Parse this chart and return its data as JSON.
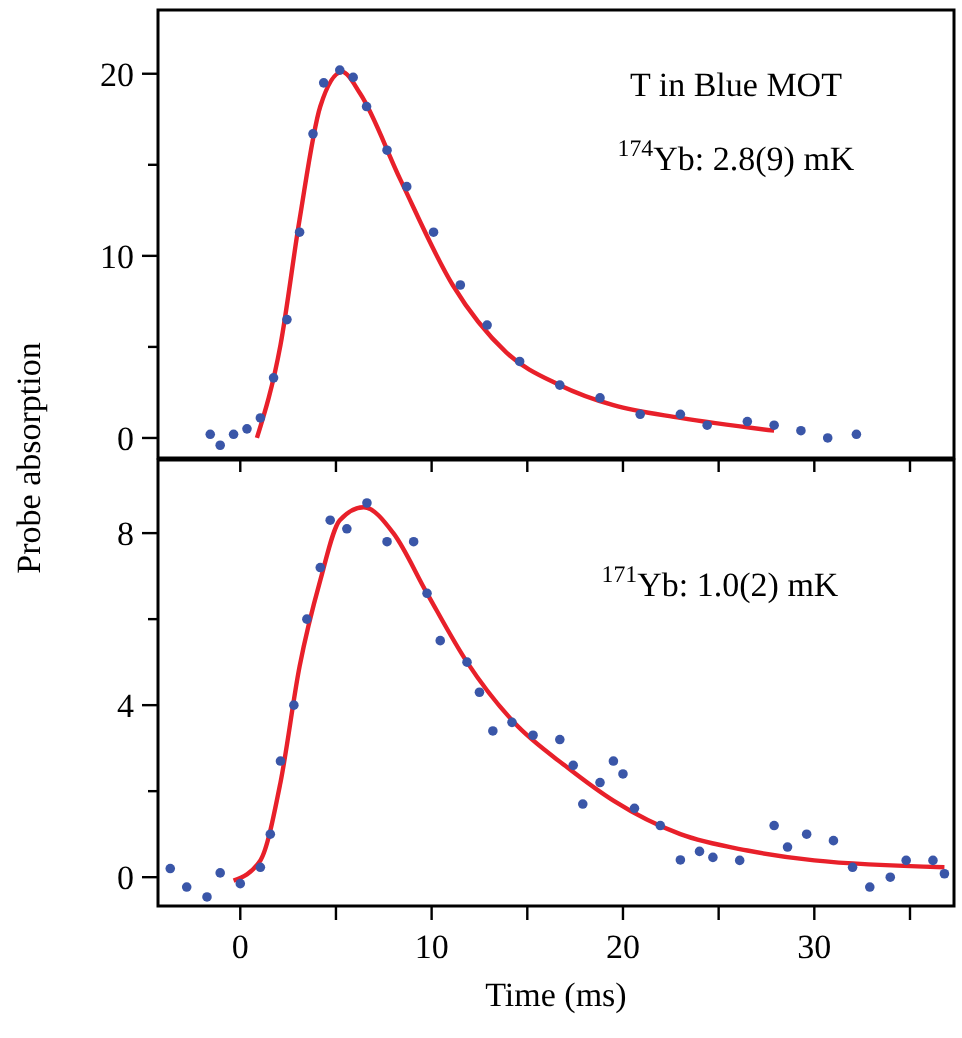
{
  "chart_data": [
    {
      "type": "scatter",
      "ylabel": "Probe absorption",
      "annotations": [
        "T in Blue MOT",
        "$^{174}$Yb: 2.8(9) mK"
      ],
      "xlim": [
        -4.3,
        37.3
      ],
      "ylim": [
        -1.1,
        23.5
      ],
      "xticks": [
        {
          "value": 0,
          "label": null
        },
        {
          "value": 5,
          "label": null
        },
        {
          "value": 10,
          "label": null
        },
        {
          "value": 15,
          "label": null
        },
        {
          "value": 20,
          "label": null
        },
        {
          "value": 25,
          "label": null
        },
        {
          "value": 30,
          "label": null
        },
        {
          "value": 35,
          "label": null
        }
      ],
      "yticks": [
        0,
        {
          "value": 5,
          "label": null
        },
        10,
        {
          "value": 15,
          "label": null
        },
        20
      ],
      "tick_labels": "y",
      "grid": false,
      "legend": false,
      "series": [
        {
          "marker": "circle",
          "color": "#3a56a8",
          "x": [
            -1.57,
            -1.05,
            -0.35,
            0.35,
            1.05,
            1.74,
            2.44,
            3.1,
            3.8,
            4.36,
            5.2,
            5.9,
            6.6,
            7.67,
            8.7,
            10.1,
            11.5,
            12.9,
            14.6,
            16.7,
            18.8,
            20.9,
            23.0,
            24.4,
            26.5,
            27.9,
            29.3,
            30.7,
            32.2
          ],
          "values": [
            0.2,
            -0.4,
            0.2,
            0.5,
            1.1,
            3.3,
            6.5,
            11.3,
            16.7,
            19.5,
            20.2,
            19.8,
            18.2,
            15.8,
            13.8,
            11.3,
            8.4,
            6.2,
            4.2,
            2.9,
            2.2,
            1.3,
            1.3,
            0.7,
            0.9,
            0.7,
            0.4,
            0,
            0.2
          ]
        },
        {
          "type": "line",
          "color": "#e8202a",
          "line_style": "solid",
          "x": [
            0.87,
            2.1,
            3.1,
            4.18,
            5.33,
            6.27,
            8.36,
            11.1,
            13.9,
            16.7,
            19.5,
            23.0,
            27.9
          ],
          "values": [
            0,
            5.1,
            12,
            18.2,
            20.1,
            18.9,
            14.2,
            8.4,
            4.7,
            2.9,
            1.8,
            1.1,
            0.4
          ]
        }
      ]
    },
    {
      "type": "scatter",
      "xlabel": "Time (ms)",
      "annotations": [
        "$^{171}$Yb: 1.0(2) mK"
      ],
      "xlim": [
        -4.3,
        37.3
      ],
      "ylim": [
        -0.67,
        9.7
      ],
      "xticks": [
        0,
        {
          "value": 5,
          "label": null
        },
        10,
        {
          "value": 15,
          "label": null
        },
        20,
        {
          "value": 25,
          "label": null
        },
        30,
        {
          "value": 35,
          "label": null
        }
      ],
      "yticks": [
        0,
        {
          "value": 2,
          "label": null
        },
        4,
        {
          "value": 6,
          "label": null
        },
        8
      ],
      "grid": false,
      "legend": false,
      "series": [
        {
          "marker": "circle",
          "color": "#3a56a8",
          "x": [
            -3.66,
            -2.8,
            -1.74,
            -1.05,
            0,
            1.05,
            1.57,
            2.1,
            2.8,
            3.48,
            4.18,
            4.7,
            5.57,
            6.62,
            7.67,
            9.06,
            9.76,
            10.45,
            11.85,
            12.5,
            13.2,
            14.2,
            15.3,
            16.7,
            17.4,
            17.9,
            18.8,
            19.5,
            20.0,
            20.6,
            21.95,
            23.0,
            24.0,
            24.7,
            26.1,
            27.9,
            28.6,
            29.6,
            31.0,
            32.0,
            32.9,
            33.97,
            34.8,
            36.2,
            36.8
          ],
          "values": [
            0.2,
            -0.23,
            -0.46,
            0.1,
            -0.15,
            0.23,
            1.0,
            2.7,
            4.0,
            6.0,
            7.2,
            8.3,
            8.1,
            8.7,
            7.8,
            7.8,
            6.6,
            5.5,
            5.0,
            4.3,
            3.4,
            3.6,
            3.3,
            3.2,
            2.6,
            1.7,
            2.2,
            2.7,
            2.4,
            1.6,
            1.2,
            0.4,
            0.6,
            0.46,
            0.39,
            1.2,
            0.7,
            1.0,
            0.85,
            0.23,
            -0.23,
            0,
            0.39,
            0.39,
            0.08
          ]
        },
        {
          "type": "line",
          "color": "#e8202a",
          "line_style": "solid",
          "x": [
            -0.35,
            1.05,
            2.1,
            3.1,
            4.18,
            5.2,
            6.45,
            8.0,
            9.76,
            11.85,
            14.3,
            17.1,
            19.5,
            23.0,
            26.5,
            30.0,
            36.8
          ],
          "values": [
            -0.08,
            0.39,
            2.2,
            4.9,
            6.9,
            8.3,
            8.6,
            8.0,
            6.6,
            5.0,
            3.6,
            2.55,
            1.78,
            1.0,
            0.62,
            0.39,
            0.23
          ]
        }
      ]
    }
  ]
}
